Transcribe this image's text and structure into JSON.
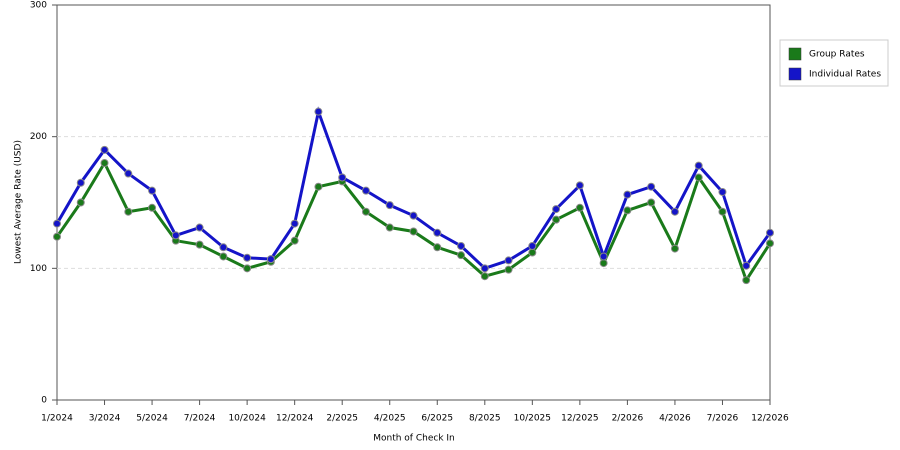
{
  "chart_data": {
    "type": "line",
    "x_label": "Month of Check In",
    "y_label": "Lowest Average Rate (USD)",
    "categories": [
      "1/2024",
      null,
      "3/2024",
      null,
      "5/2024",
      null,
      "7/2024",
      null,
      "10/2024",
      null,
      "12/2024",
      null,
      "2/2025",
      null,
      "4/2025",
      null,
      "6/2025",
      null,
      "8/2025",
      null,
      "10/2025",
      null,
      "12/2025",
      null,
      "2/2026",
      null,
      "4/2026",
      null,
      "7/2026",
      null,
      "12/2026"
    ],
    "series": [
      {
        "name": "Group Rates",
        "color": "#1a7a1a",
        "values": [
          124,
          150,
          180,
          143,
          146,
          121,
          118,
          109,
          100,
          105,
          121,
          162,
          166,
          143,
          131,
          128,
          116,
          110,
          94,
          99,
          112,
          137,
          146,
          104,
          144,
          150,
          115,
          169,
          143,
          91,
          119
        ]
      },
      {
        "name": "Individual Rates",
        "color": "#1414c8",
        "values": [
          134,
          165,
          190,
          172,
          159,
          125,
          131,
          116,
          108,
          107,
          134,
          219,
          169,
          159,
          148,
          140,
          127,
          117,
          100,
          106,
          117,
          145,
          163,
          109,
          156,
          162,
          143,
          178,
          158,
          102,
          127
        ]
      }
    ],
    "ylim": [
      0,
      300
    ],
    "yticks": [
      0,
      100,
      200,
      300
    ],
    "grid": true,
    "legend": "right"
  }
}
